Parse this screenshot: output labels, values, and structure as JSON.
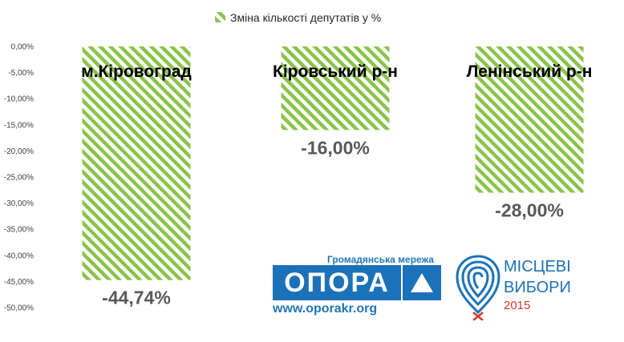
{
  "chart_data": {
    "type": "bar",
    "categories": [
      "м.Кіровоград",
      "Кіровський р-н",
      "Ленінський р-н"
    ],
    "series": [
      {
        "name": "Зміна кількості депутатів у %",
        "values": [
          -44.74,
          -16.0,
          -28.0
        ]
      }
    ],
    "value_labels": [
      "-44,74%",
      "-16,00%",
      "-28,00%"
    ],
    "ylim": [
      -50,
      0
    ],
    "yticks": [
      0,
      -5,
      -10,
      -15,
      -20,
      -25,
      -30,
      -35,
      -40,
      -45,
      -50
    ],
    "ytick_labels": [
      "0,00%",
      "-5,00%",
      "-10,00%",
      "-15,00%",
      "-20,00%",
      "-25,00%",
      "-30,00%",
      "-35,00%",
      "-40,00%",
      "-45,00%",
      "-50,00%"
    ],
    "legend_position": "top-center",
    "grid": false,
    "bar_fill": "diagonal-hatch",
    "bar_color": "#8bc34a"
  },
  "logos": {
    "opora": {
      "tagline": "Громадянська мережа",
      "name": "ОПОРА",
      "url": "www.oporakr.org",
      "color": "#1c72b8"
    },
    "elections": {
      "line1": "МІСЦЕВІ",
      "line2": "ВИБОРИ",
      "line3": "2015",
      "color": "#1c72b8",
      "year_color": "#d23a2a"
    }
  }
}
